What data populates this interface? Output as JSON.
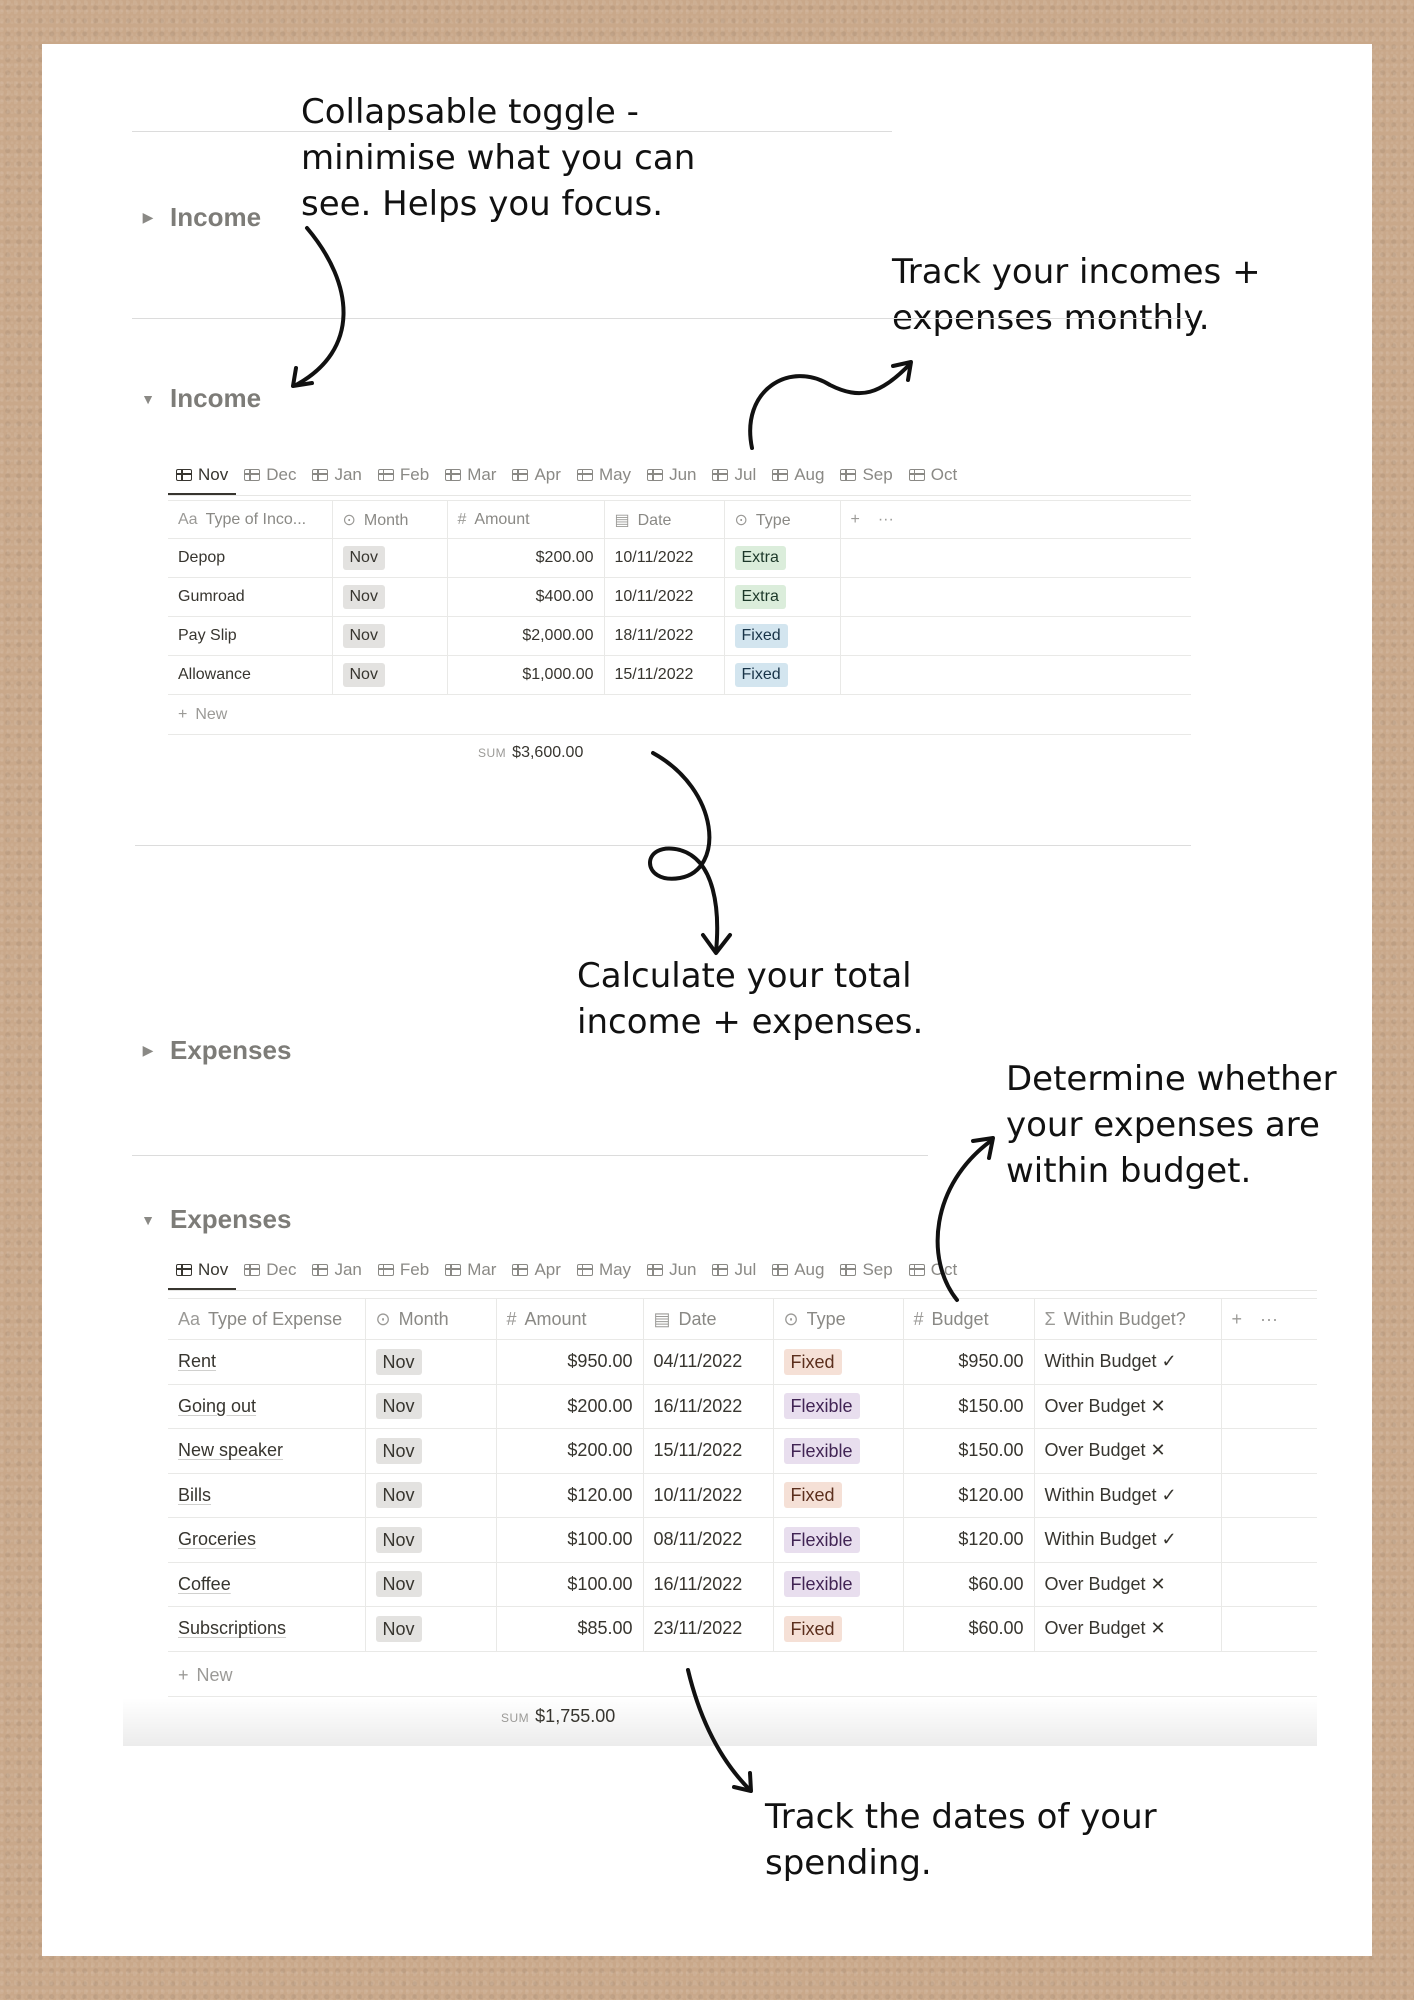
{
  "annotations": {
    "collapse": "Collapsable toggle -\nminimise what you can\nsee. Helps you focus.",
    "track": "Track your incomes +\nexpenses monthly.",
    "calculate": "Calculate your total\nincome + expenses.",
    "budget": "Determine whether\nyour expenses are\nwithin budget.",
    "dates": "Track the dates of your\nspending."
  },
  "income": {
    "collapsed_title": "Income",
    "title": "Income",
    "tabs": [
      "Nov",
      "Dec",
      "Jan",
      "Feb",
      "Mar",
      "Apr",
      "May",
      "Jun",
      "Jul",
      "Aug",
      "Sep",
      "Oct"
    ],
    "columns": {
      "name": "Type of Inco...",
      "month": "Month",
      "amount": "Amount",
      "date": "Date",
      "type": "Type",
      "add": "+",
      "more": "···"
    },
    "rows": [
      {
        "name": "Depop",
        "month": "Nov",
        "amount": "$200.00",
        "date": "10/11/2022",
        "type": "Extra"
      },
      {
        "name": "Gumroad",
        "month": "Nov",
        "amount": "$400.00",
        "date": "10/11/2022",
        "type": "Extra"
      },
      {
        "name": "Pay Slip",
        "month": "Nov",
        "amount": "$2,000.00",
        "date": "18/11/2022",
        "type": "Fixed"
      },
      {
        "name": "Allowance",
        "month": "Nov",
        "amount": "$1,000.00",
        "date": "15/11/2022",
        "type": "Fixed"
      }
    ],
    "new_label": "New",
    "sum_label": "SUM",
    "sum_value": "$3,600.00"
  },
  "expenses": {
    "collapsed_title": "Expenses",
    "title": "Expenses",
    "tabs": [
      "Nov",
      "Dec",
      "Jan",
      "Feb",
      "Mar",
      "Apr",
      "May",
      "Jun",
      "Jul",
      "Aug",
      "Sep",
      "Oct"
    ],
    "columns": {
      "name": "Type of Expense",
      "month": "Month",
      "amount": "Amount",
      "date": "Date",
      "type": "Type",
      "budget": "Budget",
      "within": "Within Budget?",
      "add": "+",
      "more": "···"
    },
    "rows": [
      {
        "name": "Rent",
        "month": "Nov",
        "amount": "$950.00",
        "date": "04/11/2022",
        "type": "Fixed",
        "budget": "$950.00",
        "within": "Within Budget ✓"
      },
      {
        "name": "Going out",
        "month": "Nov",
        "amount": "$200.00",
        "date": "16/11/2022",
        "type": "Flexible",
        "budget": "$150.00",
        "within": "Over Budget ✕"
      },
      {
        "name": "New speaker",
        "month": "Nov",
        "amount": "$200.00",
        "date": "15/11/2022",
        "type": "Flexible",
        "budget": "$150.00",
        "within": "Over Budget ✕"
      },
      {
        "name": "Bills",
        "month": "Nov",
        "amount": "$120.00",
        "date": "10/11/2022",
        "type": "Fixed",
        "budget": "$120.00",
        "within": "Within Budget ✓"
      },
      {
        "name": "Groceries",
        "month": "Nov",
        "amount": "$100.00",
        "date": "08/11/2022",
        "type": "Flexible",
        "budget": "$120.00",
        "within": "Within Budget ✓"
      },
      {
        "name": "Coffee",
        "month": "Nov",
        "amount": "$100.00",
        "date": "16/11/2022",
        "type": "Flexible",
        "budget": "$60.00",
        "within": "Over Budget ✕"
      },
      {
        "name": "Subscriptions",
        "month": "Nov",
        "amount": "$85.00",
        "date": "23/11/2022",
        "type": "Fixed",
        "budget": "$60.00",
        "within": "Over Budget ✕"
      }
    ],
    "new_label": "New",
    "sum_label": "SUM",
    "sum_value": "$1,755.00"
  },
  "icons": {
    "table": "table-icon",
    "text": "text-aa-icon",
    "select": "select-icon",
    "number": "hash-icon",
    "date": "calendar-icon",
    "formula": "sigma-icon"
  },
  "colors": {
    "paper": "#ffffff",
    "background": "#c9a88a",
    "extra": "#dbeddb",
    "fixed_income": "#d3e5ef",
    "fixed_expense": "#f5e0d6",
    "flexible": "#e8deee",
    "month": "#e3e2e0"
  }
}
